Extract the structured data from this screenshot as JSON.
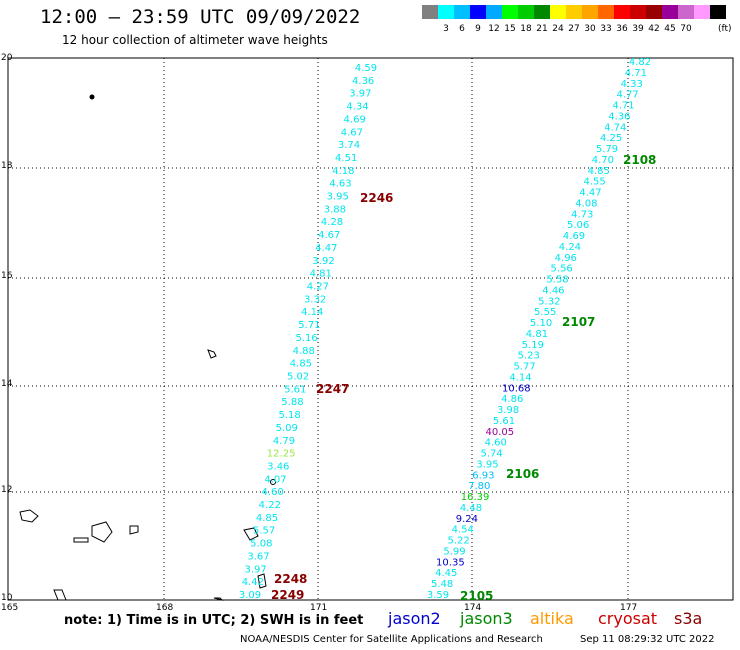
{
  "header": {
    "title": "12:00 – 23:59 UTC 09/09/2022",
    "subtitle": "12 hour collection of altimeter wave heights"
  },
  "colorbar": {
    "unit": "(ft)",
    "colors": [
      "#808080",
      "#00ffff",
      "#00bfff",
      "#0000ff",
      "#00aaff",
      "#00ff00",
      "#00cc00",
      "#008800",
      "#ffff00",
      "#ffcc00",
      "#ffa500",
      "#ff6600",
      "#ff0000",
      "#cc0000",
      "#990000",
      "#990099",
      "#cc66cc",
      "#ff99ff",
      "#000000"
    ],
    "labels": [
      "3",
      "6",
      "9",
      "12",
      "15",
      "18",
      "21",
      "24",
      "27",
      "30",
      "33",
      "36",
      "39",
      "42",
      "45",
      "70"
    ]
  },
  "map": {
    "lon_ticks": [
      "165",
      "168",
      "171",
      "174",
      "177"
    ],
    "lat_ticks": [
      "20",
      "18",
      "16",
      "14",
      "12",
      "10"
    ],
    "track_a": [
      "4.59",
      "4.36",
      "3.97",
      "4.34",
      "4.69",
      "4.67",
      "3.74",
      "4.51",
      "4.18",
      "4.63",
      "3.95",
      "3.88",
      "4.28",
      "4.67",
      "4.47",
      "3.92",
      "4.81",
      "4.27",
      "3.32",
      "4.14",
      "5.71",
      "5.16",
      "4.88",
      "4.85",
      "5.02",
      "5.61",
      "5.88",
      "5.18",
      "5.09",
      "4.79",
      "12.25",
      "3.46",
      "4.07",
      "4.60",
      "4.22",
      "4.85",
      "5.57",
      "5.08",
      "3.67",
      "3.97",
      "4.42",
      "3.09"
    ],
    "track_b": [
      "4.82",
      "4.71",
      "4.33",
      "4.77",
      "4.71",
      "4.36",
      "4.74",
      "4.25",
      "5.79",
      "4.70",
      "4.85",
      "4.55",
      "4.47",
      "4.08",
      "4.73",
      "5.06",
      "4.69",
      "4.24",
      "4.96",
      "5.56",
      "5.58",
      "4.46",
      "5.32",
      "5.55",
      "5.10",
      "4.81",
      "5.19",
      "5.23",
      "5.77",
      "4.14",
      "10.68",
      "4.86",
      "3.98",
      "5.61",
      "40.05",
      "4.60",
      "5.74",
      "3.95",
      "6.93",
      "7.80",
      "16.39",
      "4.48",
      "9.24",
      "4.54",
      "5.22",
      "5.99",
      "10.35",
      "4.45",
      "5.48",
      "3.59"
    ],
    "passes_cryosat": [
      "2246",
      "2247",
      "2248",
      "2249"
    ],
    "passes_jason3": [
      "2108",
      "2107",
      "2106",
      "2105"
    ]
  },
  "footer": {
    "note": "note:  1) Time is in UTC;  2) SWH is in feet",
    "legend": [
      {
        "label": "jason2",
        "color": "#0000cc"
      },
      {
        "label": "jason3",
        "color": "#008800"
      },
      {
        "label": "altika",
        "color": "#ff9900"
      },
      {
        "label": "cryosat",
        "color": "#cc0000"
      },
      {
        "label": "s3a",
        "color": "#880000"
      }
    ],
    "credit": "NOAA/NESDIS Center for Satellite Applications and Research",
    "datetime": "Sep 11 08:29:32 UTC 2022"
  }
}
